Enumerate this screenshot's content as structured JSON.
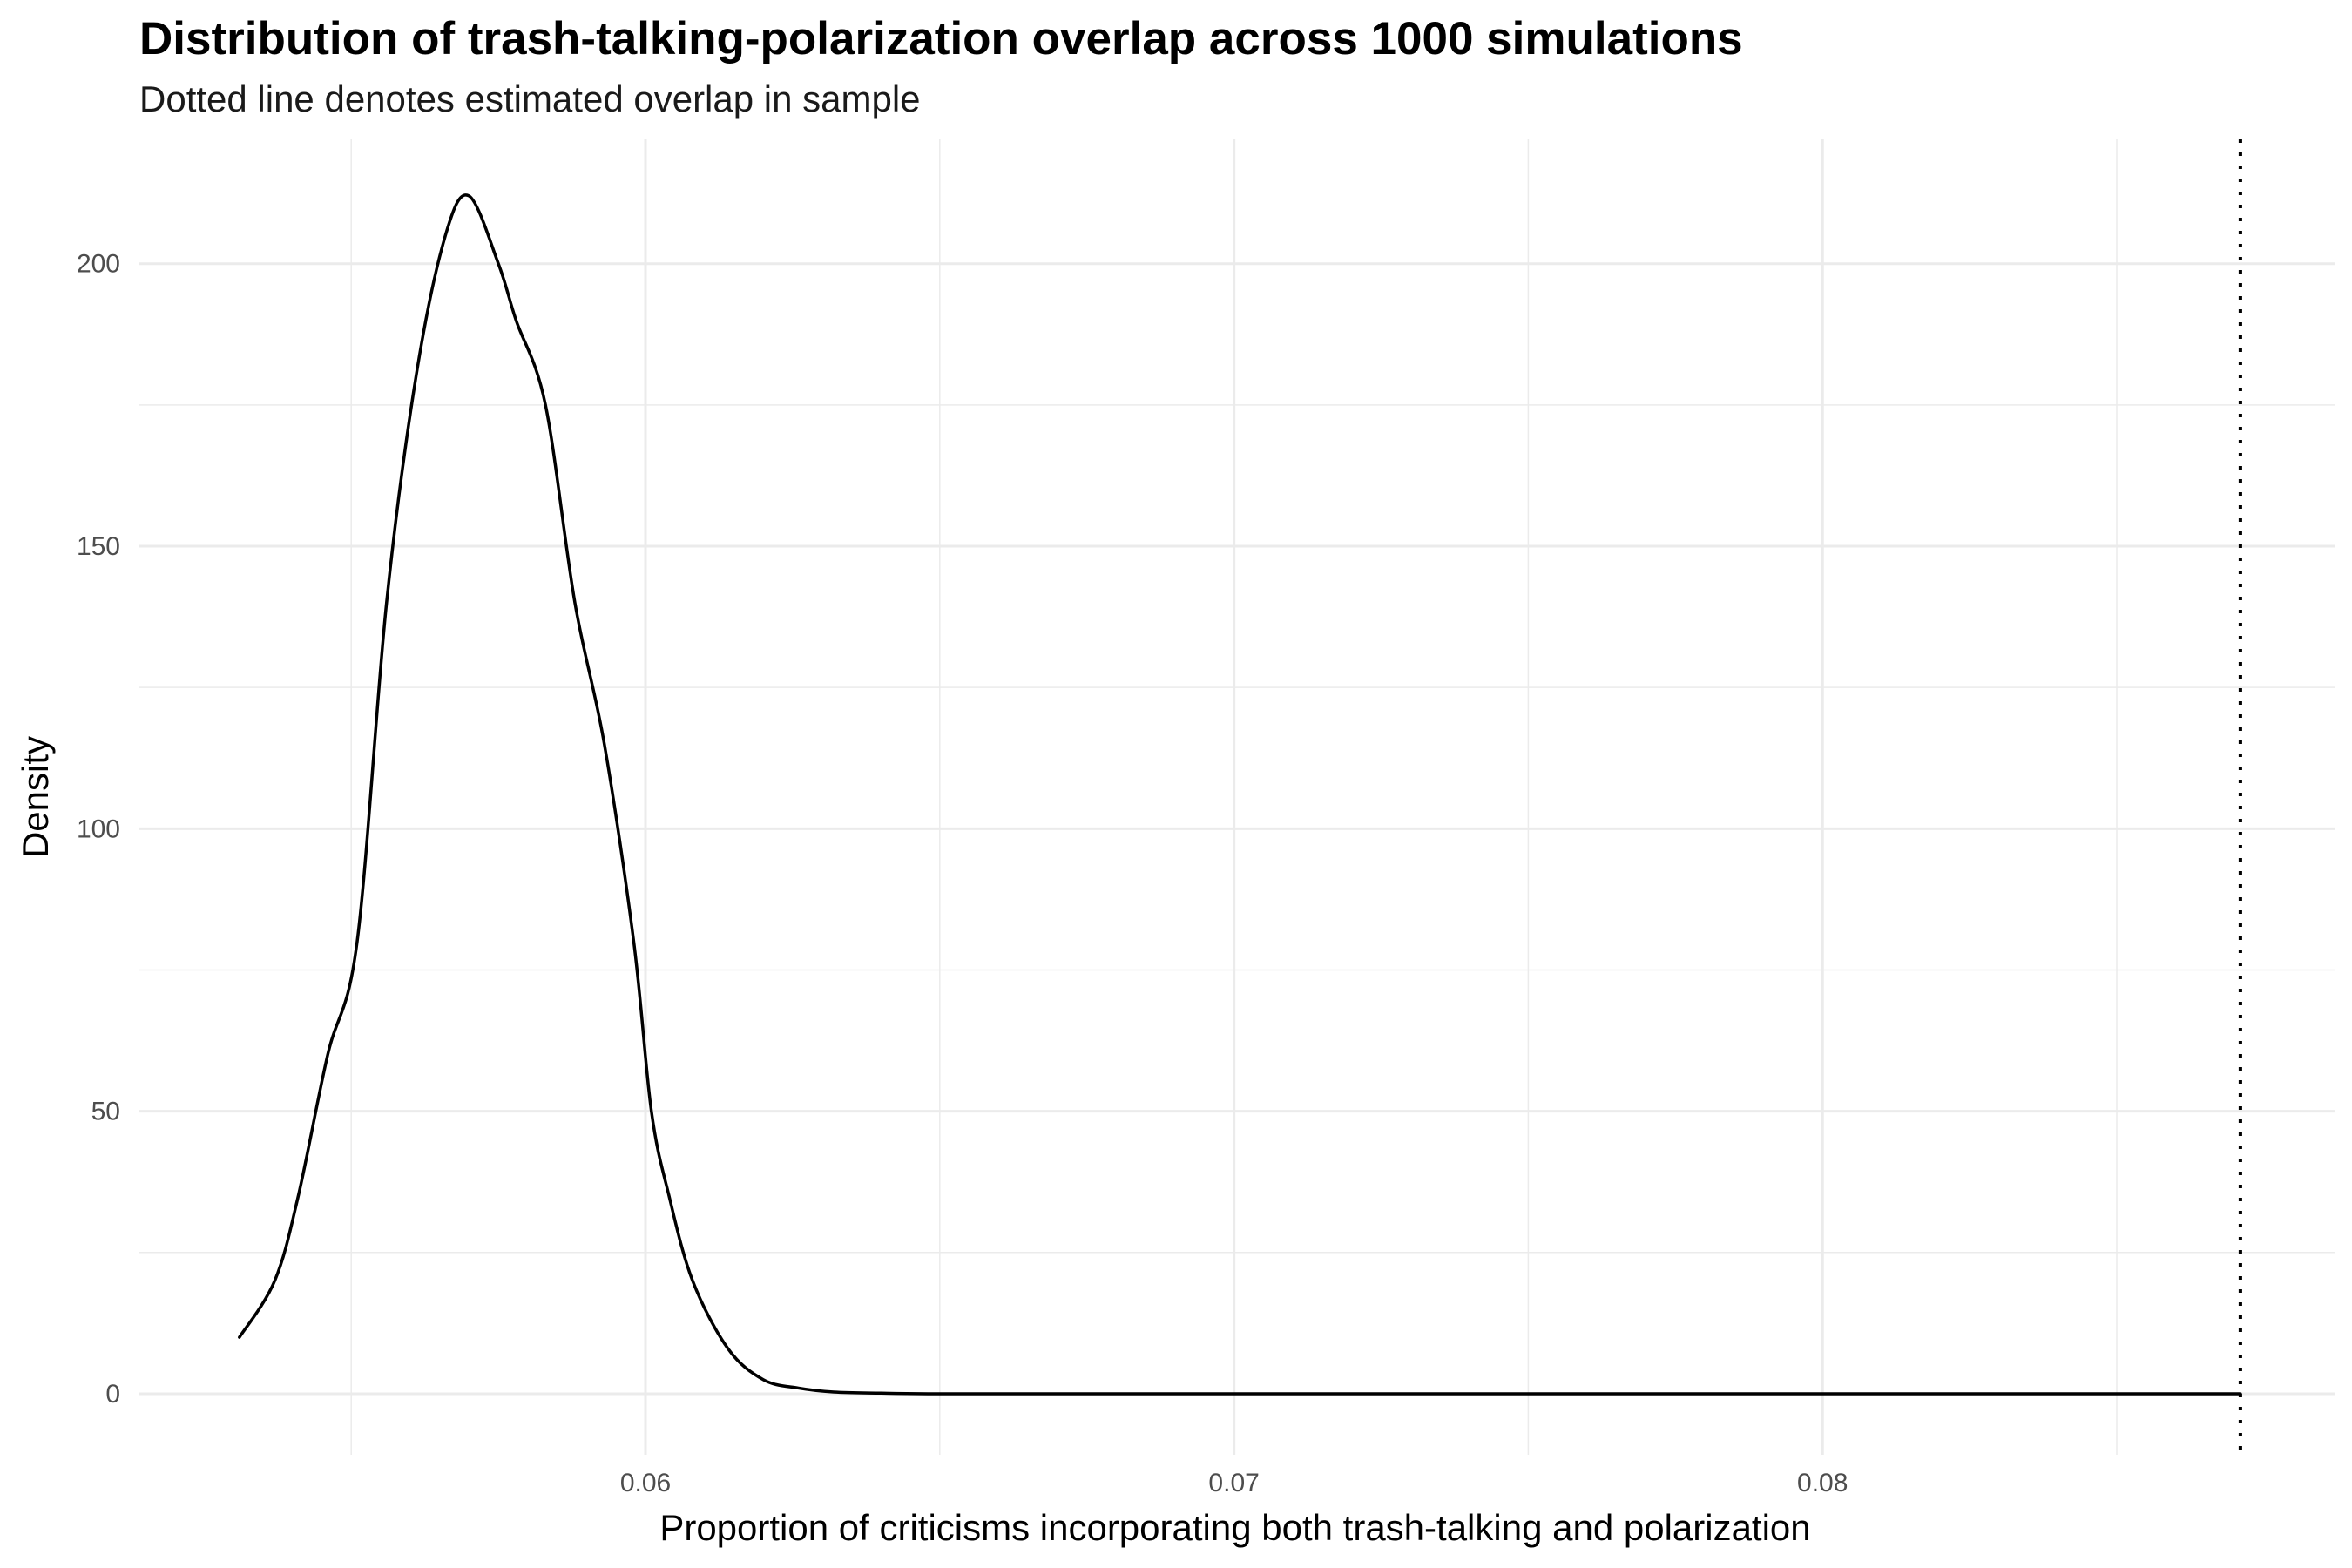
{
  "chart_data": {
    "type": "line",
    "title": "Distribution of trash-talking-polarization overlap across 1000 simulations",
    "subtitle": "Dotted line denotes estimated overlap in sample",
    "xlabel": "Proportion of criticisms incorporating both trash-talking and polarization",
    "ylabel": "Density",
    "xlim": [
      0.0514,
      0.0887
    ],
    "ylim": [
      -10.8,
      222
    ],
    "x_ticks": [
      0.06,
      0.07,
      0.08
    ],
    "x_tick_labels": [
      "0.06",
      "0.07",
      "0.08"
    ],
    "y_ticks": [
      0,
      50,
      100,
      150,
      200
    ],
    "y_tick_labels": [
      "0",
      "50",
      "100",
      "150",
      "200"
    ],
    "grid": true,
    "legend": "none",
    "reference_line": {
      "x": 0.0871,
      "style": "dotted",
      "color": "#000000"
    },
    "series": [
      {
        "color": "#000000",
        "x": [
          0.0531,
          0.0537,
          0.0541,
          0.0546,
          0.0551,
          0.0556,
          0.0561,
          0.0566,
          0.057,
          0.0575,
          0.0578,
          0.0583,
          0.0588,
          0.0593,
          0.0598,
          0.0601,
          0.0604,
          0.0608,
          0.0614,
          0.062,
          0.0626,
          0.0632,
          0.064,
          0.0648,
          0.066,
          0.068,
          0.072,
          0.076,
          0.08,
          0.084,
          0.0871
        ],
        "values": [
          10,
          20,
          35,
          60,
          80,
          140,
          180,
          205,
          212,
          200,
          190,
          175,
          140,
          115,
          80,
          50,
          35,
          20,
          8,
          2.5,
          1,
          0.3,
          0.1,
          0,
          0,
          0,
          0,
          0,
          0,
          0,
          0
        ]
      }
    ]
  }
}
